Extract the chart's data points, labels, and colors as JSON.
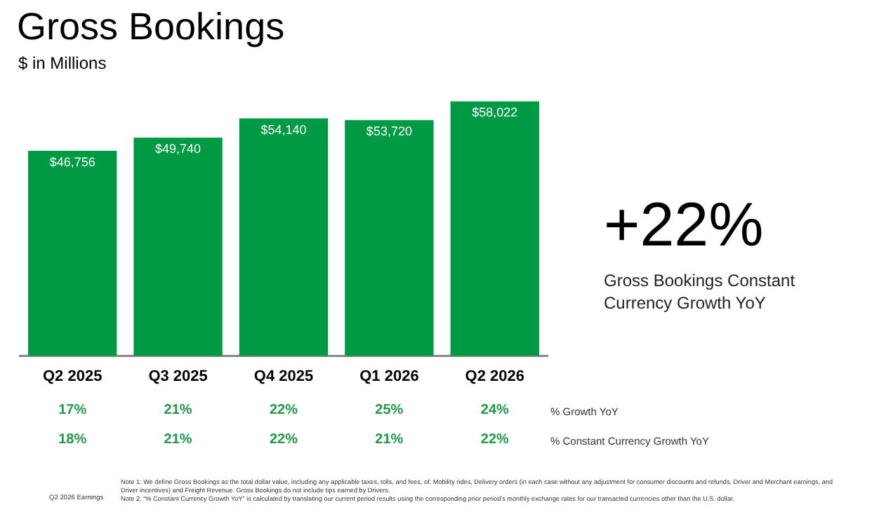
{
  "chart_data": {
    "type": "bar",
    "title": "Gross Bookings",
    "subtitle": "$ in Millions",
    "categories": [
      "Q2 2025",
      "Q3 2025",
      "Q4 2025",
      "Q1 2026",
      "Q2 2026"
    ],
    "values": [
      46756,
      49740,
      54140,
      53720,
      58022
    ],
    "value_labels": [
      "$46,756",
      "$49,740",
      "$54,140",
      "$53,720",
      "$58,022"
    ],
    "color": "#009a44",
    "grid": false,
    "legend": false,
    "tick_labels": "x",
    "annotations": [
      "+22%",
      "Gross Bookings Constant Currency Growth YoY",
      "% Growth YoY",
      "% Constant Currency Growth YoY",
      "17%",
      "21%",
      "22%",
      "25%",
      "24%",
      "18%",
      "21%",
      "22%",
      "21%",
      "22%",
      "Note 1: We define Gross Bookings as the total dollar value, including any applicable taxes, tolls, and fees, of: Mobility rides, Delivery orders (in each case without any adjustment for consumer discounts and refunds, Driver and Merchant earnings, and Driver incentives) and Freight Revenue. Gross Bookings do not include tips earned by Drivers.",
      "Note 2: “% Constant Currency Growth YoY” is calculated by translating our current period results using the corresponding prior period’s monthly exchange rates for our transacted currencies other than the U.S. dollar.",
      "Q2 2026 Earnings"
    ]
  }
}
